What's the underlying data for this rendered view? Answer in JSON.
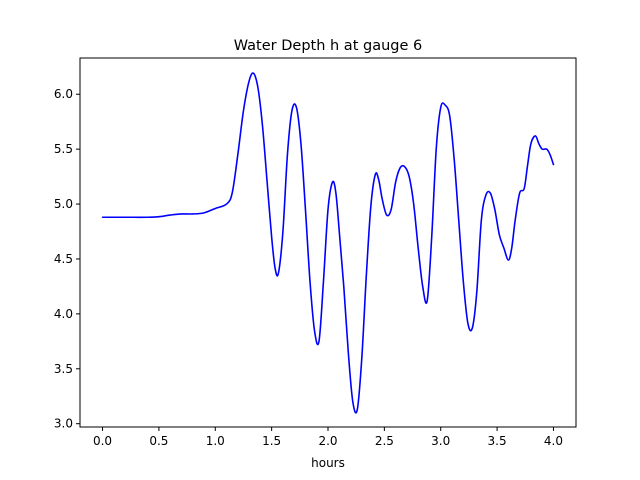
{
  "chart_data": {
    "type": "line",
    "title": "Water Depth h at gauge 6",
    "xlabel": "hours",
    "ylabel": "",
    "xlim": [
      -0.2,
      4.2
    ],
    "ylim": [
      2.97,
      6.33
    ],
    "xticks": [
      0.0,
      0.5,
      1.0,
      1.5,
      2.0,
      2.5,
      3.0,
      3.5,
      4.0
    ],
    "xtick_labels": [
      "0.0",
      "0.5",
      "1.0",
      "1.5",
      "2.0",
      "2.5",
      "3.0",
      "3.5",
      "4.0"
    ],
    "yticks": [
      3.0,
      3.5,
      4.0,
      4.5,
      5.0,
      5.5,
      6.0
    ],
    "ytick_labels": [
      "3.0",
      "3.5",
      "4.0",
      "4.5",
      "5.0",
      "5.5",
      "6.0"
    ],
    "grid": false,
    "legend": "none",
    "series": [
      {
        "color": "#0000ff",
        "x": [
          0.0,
          0.2,
          0.4,
          0.5,
          0.6,
          0.7,
          0.8,
          0.9,
          1.0,
          1.1,
          1.15,
          1.2,
          1.25,
          1.3,
          1.34,
          1.38,
          1.42,
          1.46,
          1.5,
          1.53,
          1.56,
          1.6,
          1.64,
          1.68,
          1.72,
          1.76,
          1.8,
          1.84,
          1.88,
          1.92,
          1.96,
          2.0,
          2.04,
          2.07,
          2.1,
          2.14,
          2.18,
          2.22,
          2.26,
          2.3,
          2.34,
          2.38,
          2.42,
          2.45,
          2.48,
          2.52,
          2.56,
          2.6,
          2.64,
          2.68,
          2.72,
          2.76,
          2.8,
          2.84,
          2.88,
          2.92,
          2.96,
          3.0,
          3.04,
          3.08,
          3.12,
          3.16,
          3.2,
          3.24,
          3.28,
          3.32,
          3.36,
          3.4,
          3.44,
          3.48,
          3.52,
          3.56,
          3.6,
          3.63,
          3.66,
          3.7,
          3.74,
          3.77,
          3.8,
          3.84,
          3.87,
          3.9,
          3.94,
          3.97,
          4.0
        ],
        "y": [
          4.88,
          4.88,
          4.88,
          4.885,
          4.9,
          4.91,
          4.91,
          4.92,
          4.96,
          5.0,
          5.1,
          5.45,
          5.85,
          6.12,
          6.19,
          6.05,
          5.7,
          5.2,
          4.7,
          4.42,
          4.37,
          4.75,
          5.45,
          5.85,
          5.88,
          5.55,
          4.95,
          4.3,
          3.85,
          3.75,
          4.3,
          4.95,
          5.2,
          5.1,
          4.75,
          4.25,
          3.65,
          3.2,
          3.13,
          3.6,
          4.35,
          4.98,
          5.27,
          5.22,
          5.05,
          4.9,
          4.95,
          5.2,
          5.33,
          5.34,
          5.25,
          5.0,
          4.6,
          4.25,
          4.12,
          4.7,
          5.5,
          5.88,
          5.9,
          5.8,
          5.4,
          4.85,
          4.3,
          3.92,
          3.87,
          4.2,
          4.85,
          5.08,
          5.1,
          4.95,
          4.72,
          4.6,
          4.49,
          4.6,
          4.85,
          5.1,
          5.14,
          5.35,
          5.55,
          5.62,
          5.55,
          5.5,
          5.5,
          5.45,
          5.36
        ]
      }
    ]
  }
}
